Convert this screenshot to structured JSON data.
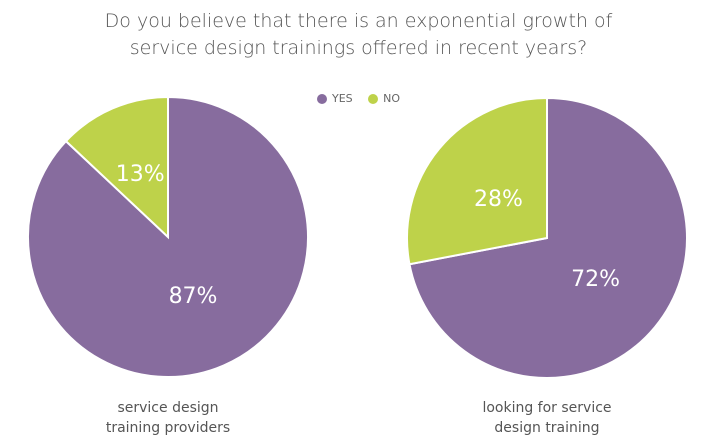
{
  "chart_data": [
    {
      "type": "pie",
      "title": "Do you believe that there is an exponential growth of service design trainings offered in recent years?",
      "caption": "service design training providers",
      "slices": [
        {
          "name": "YES",
          "value": 87,
          "label": "87%"
        },
        {
          "name": "NO",
          "value": 13,
          "label": "13%"
        }
      ]
    },
    {
      "type": "pie",
      "caption": "looking for service design training",
      "slices": [
        {
          "name": "YES",
          "value": 72,
          "label": "72%"
        },
        {
          "name": "NO",
          "value": 28,
          "label": "28%"
        }
      ]
    }
  ],
  "title_line1": "Do you believe that there is an exponential growth of",
  "title_line2": "service design trainings offered in recent years?",
  "legend": [
    {
      "name": "YES",
      "color": "#876c9e"
    },
    {
      "name": "NO",
      "color": "#bed24a"
    }
  ],
  "captions": [
    [
      "service design",
      "training providers"
    ],
    [
      "looking for service",
      "design training"
    ]
  ],
  "legend_placement": "top-center"
}
